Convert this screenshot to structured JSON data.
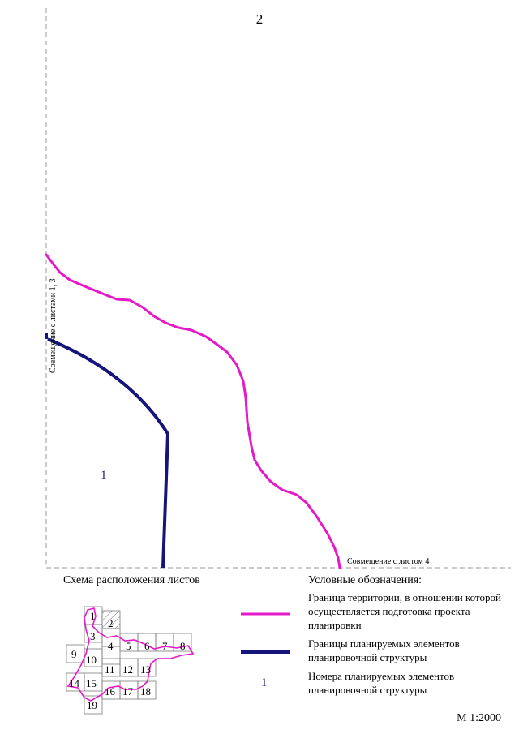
{
  "sheet_number": "2",
  "map": {
    "left_alignment_label": "Совмещение с листами 1, 3",
    "bottom_alignment_label": "Совмещение с листом 4",
    "element_number": "1"
  },
  "scheme": {
    "title": "Схема расположения листов",
    "sheets": [
      "1",
      "2",
      "3",
      "4",
      "5",
      "6",
      "7",
      "8",
      "9",
      "10",
      "11",
      "12",
      "13",
      "14",
      "15",
      "16",
      "17",
      "18",
      "19"
    ],
    "current_sheet": "2"
  },
  "legend": {
    "title": "Условные обозначения:",
    "items": [
      {
        "symbol": "line",
        "color": "#e619c8",
        "text": "Граница территории, в отношении которой осуществляется подготовка проекта планировки"
      },
      {
        "symbol": "line",
        "color": "#14147a",
        "text": "Границы планируемых элементов планировочной структуры"
      },
      {
        "symbol": "text",
        "symbol_text": "1",
        "color": "#1a1a8c",
        "text": "Номера планируемых элементов планировочной структуры"
      }
    ]
  },
  "scale": "М 1:2000",
  "colors": {
    "territory_border": "#e619c8",
    "element_border": "#14147a",
    "guides": "#9a9a9a"
  }
}
